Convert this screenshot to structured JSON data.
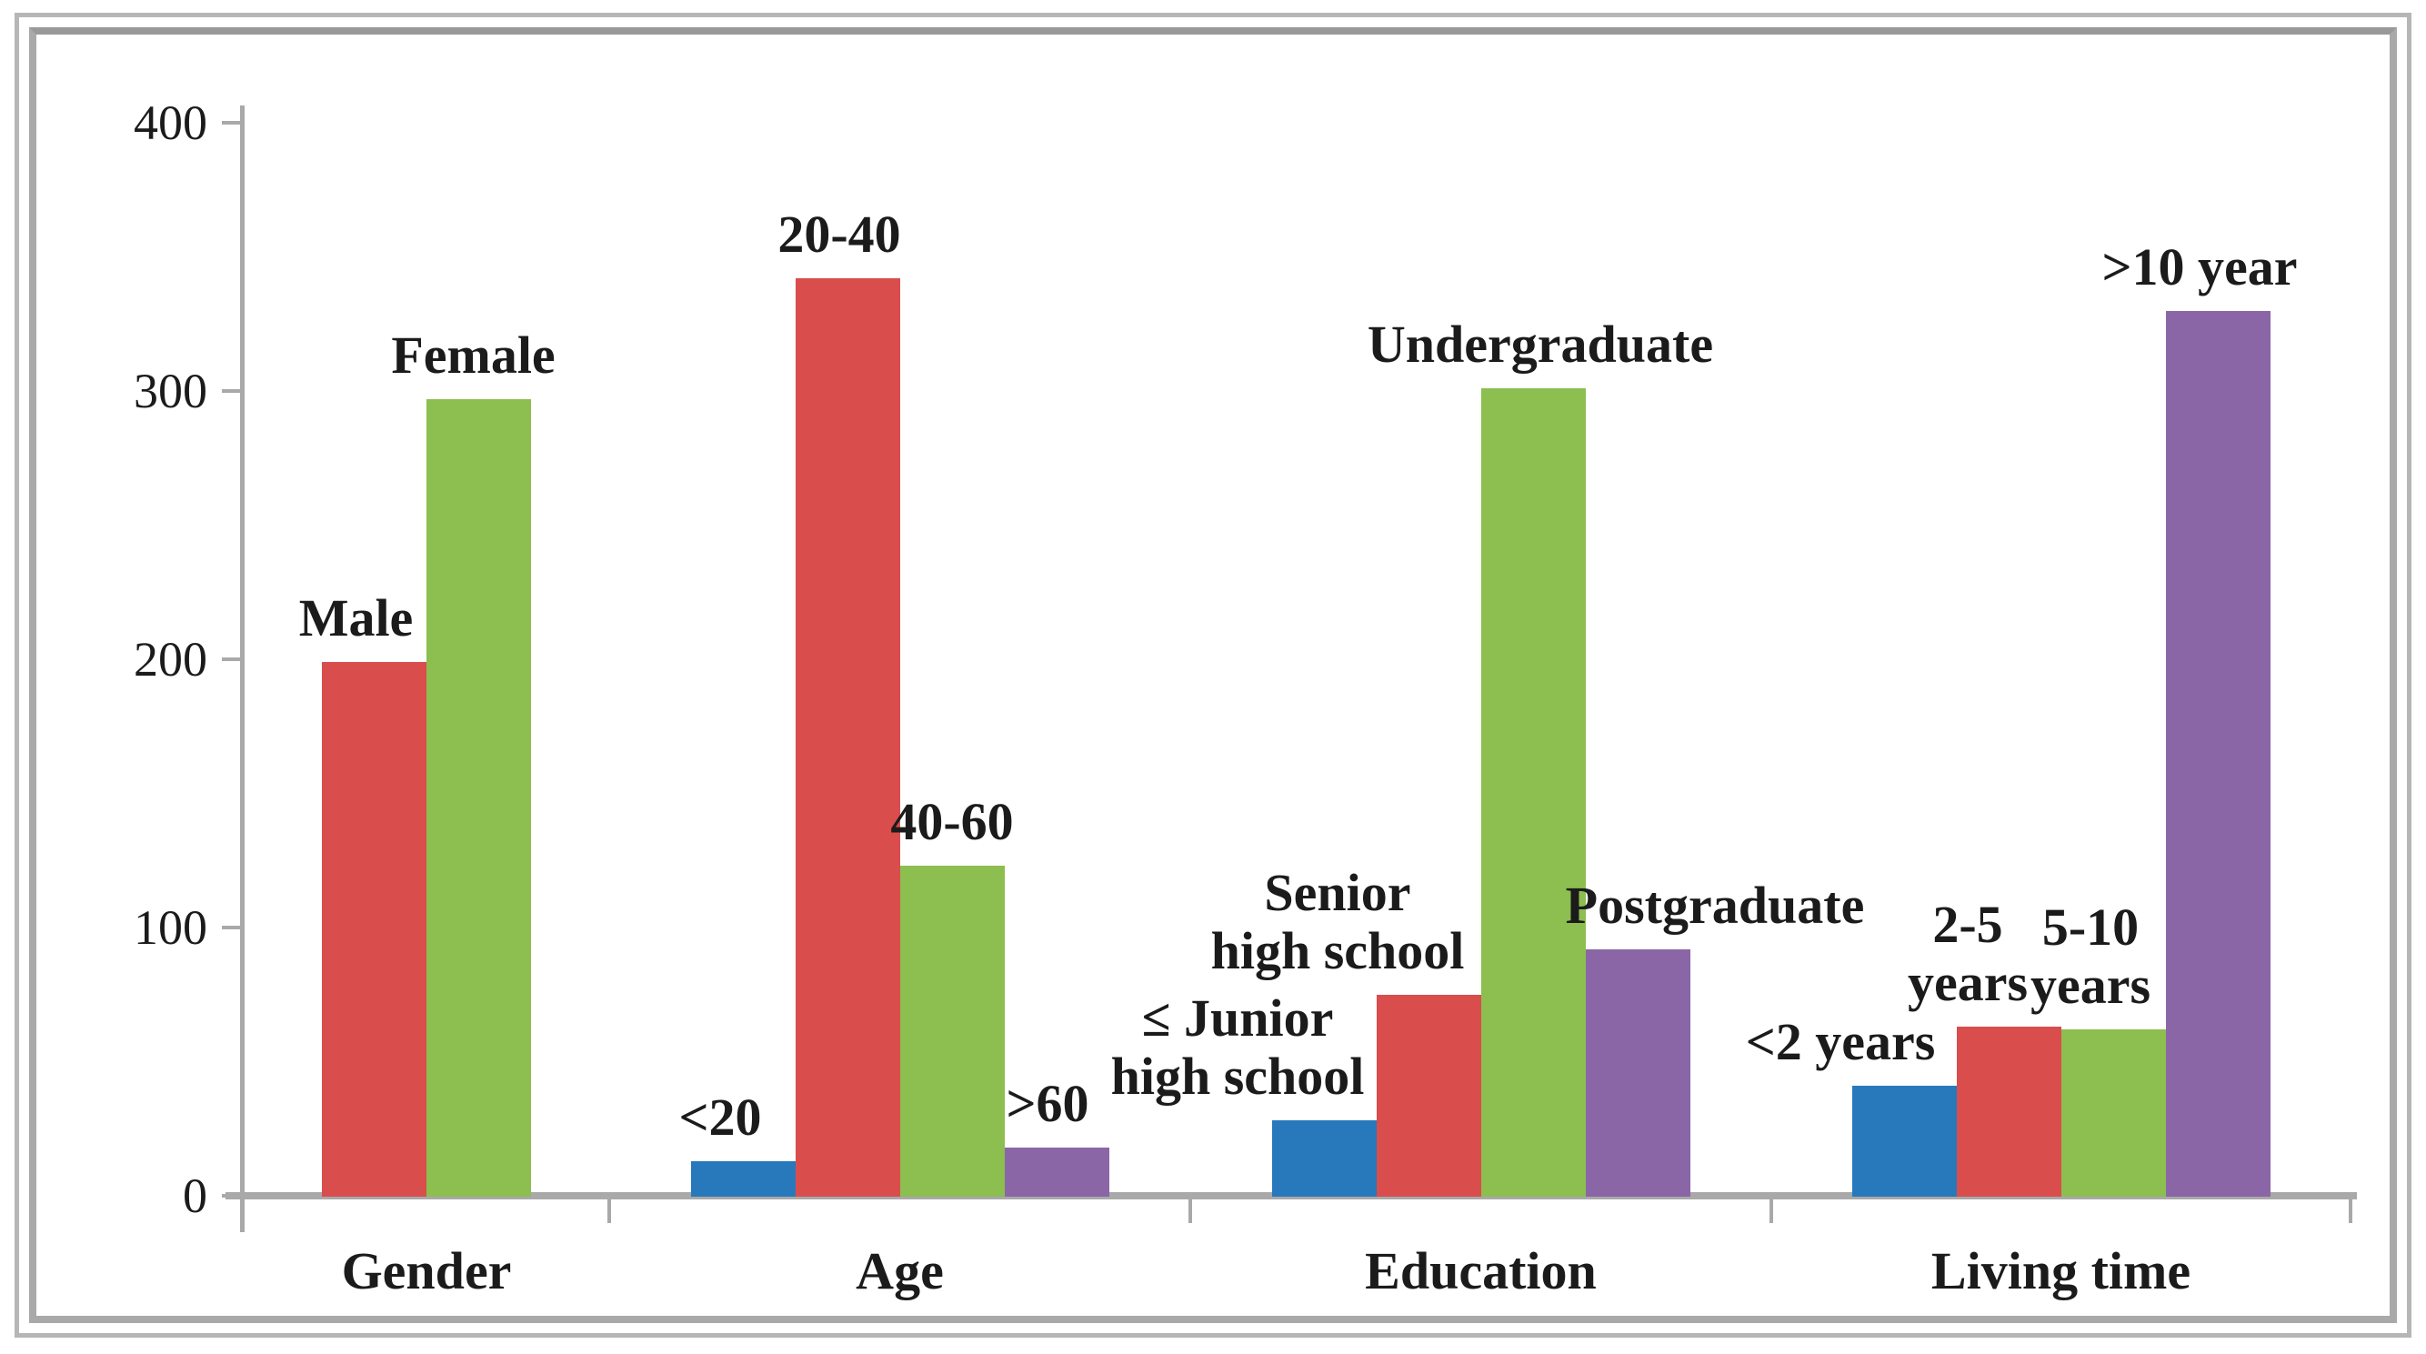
{
  "figure": {
    "background": "#ffffff",
    "outer_border_color": "#b6b6b6",
    "inner_border_color": "#a9a9a9"
  },
  "chart_data": {
    "type": "bar",
    "title": "",
    "xlabel": "",
    "ylabel": "",
    "ylim": [
      0,
      400
    ],
    "yticks": [
      "400",
      "300",
      "200",
      "100",
      "0"
    ],
    "ytick_values": [
      400,
      300,
      200,
      100,
      0
    ],
    "grid": false,
    "legend": "none",
    "axis_color": "#a9a9a9",
    "text_color": "#1b1b1b",
    "palette": {
      "blue": "#2878BC",
      "red": "#D94D4D",
      "green": "#8CBE50",
      "purple": "#8A66A6"
    },
    "categories": [
      "Gender",
      "Age",
      "Education",
      "Living time"
    ],
    "groups": [
      {
        "label": "Gender",
        "bars": [
          {
            "label": "Male",
            "value": 199,
            "color": "red"
          },
          {
            "label": "Female",
            "value": 297,
            "color": "green"
          }
        ]
      },
      {
        "label": "Age",
        "bars": [
          {
            "label": "<20",
            "value": 13,
            "color": "blue"
          },
          {
            "label": "20-40",
            "value": 342,
            "color": "red"
          },
          {
            "label": "40-60",
            "value": 123,
            "color": "green"
          },
          {
            "label": ">60",
            "value": 18,
            "color": "purple"
          }
        ]
      },
      {
        "label": "Education",
        "bars": [
          {
            "label": "≤ Junior\nhigh school",
            "value": 28,
            "color": "blue"
          },
          {
            "label": "Senior\nhigh school",
            "value": 75,
            "color": "red"
          },
          {
            "label": "Undergraduate",
            "value": 301,
            "color": "green"
          },
          {
            "label": "Postgraduate",
            "value": 92,
            "color": "purple"
          }
        ]
      },
      {
        "label": "Living time",
        "bars": [
          {
            "label": "<2 years",
            "value": 41,
            "color": "blue"
          },
          {
            "label": "2-5\nyears",
            "value": 63,
            "color": "red"
          },
          {
            "label": "5-10\nyears",
            "value": 62,
            "color": "green"
          },
          {
            "label": ">10 year",
            "value": 330,
            "color": "purple"
          }
        ]
      }
    ]
  }
}
